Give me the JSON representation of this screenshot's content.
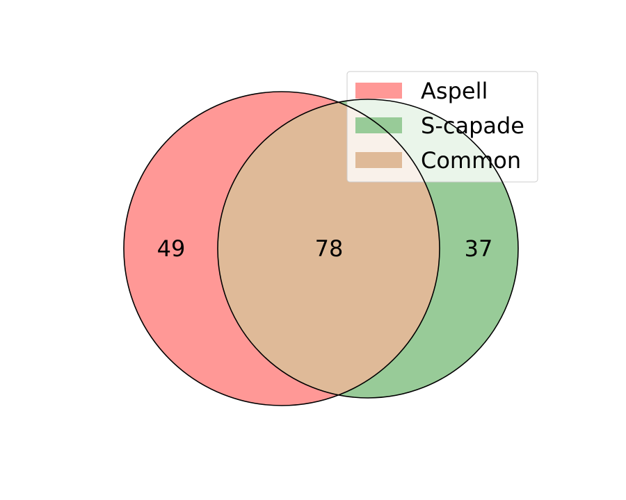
{
  "chart_data": {
    "type": "venn",
    "sets": [
      {
        "name": "Aspell",
        "only_count": 49,
        "color": "#ff9896"
      },
      {
        "name": "S-capade",
        "only_count": 37,
        "color": "#98cb98"
      }
    ],
    "intersection": {
      "name": "Common",
      "count": 78,
      "color": "#dfba98"
    },
    "legend": {
      "placement": "top-right",
      "entries": [
        {
          "label": "Aspell",
          "color": "#ff9896"
        },
        {
          "label": "S-capade",
          "color": "#98cb98"
        },
        {
          "label": "Common",
          "color": "#dfba98"
        }
      ]
    }
  }
}
